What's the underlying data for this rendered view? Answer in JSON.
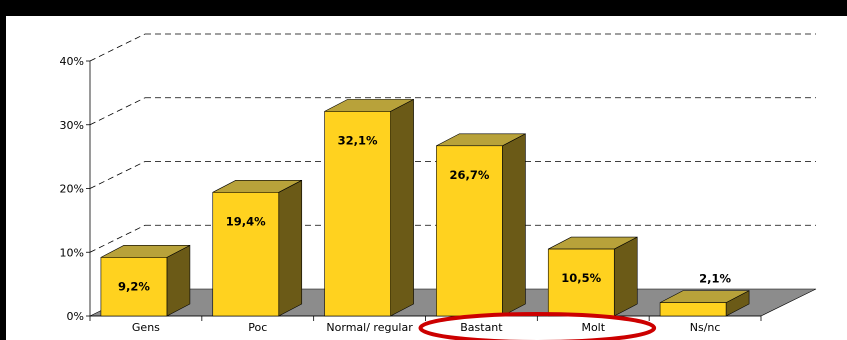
{
  "chart_data": {
    "type": "bar",
    "title": "",
    "xlabel": "",
    "ylabel": "",
    "categories": [
      "Gens",
      "Poc",
      "Normal/ regular",
      "Bastant",
      "Molt",
      "Ns/nc"
    ],
    "values": [
      9.2,
      19.4,
      32.1,
      26.7,
      10.5,
      2.1
    ],
    "data_labels": [
      "9,2%",
      "19,4%",
      "32,1%",
      "26,7%",
      "10,5%",
      "2,1%"
    ],
    "y_ticks": [
      "0%",
      "10%",
      "20%",
      "30%",
      "40%"
    ],
    "ylim": [
      0,
      40
    ],
    "grid": "dashed",
    "style": "3d",
    "highlight": {
      "categories": [
        "Bastant",
        "Molt"
      ],
      "shape": "ellipse",
      "color": "#cc0000"
    },
    "colors": {
      "bar_front": "#ffd21f",
      "bar_top": "#b8a23a",
      "bar_side": "#6b5a17",
      "floor": "#8c8c8c",
      "background": "#ffffff",
      "frame": "#000000"
    }
  }
}
